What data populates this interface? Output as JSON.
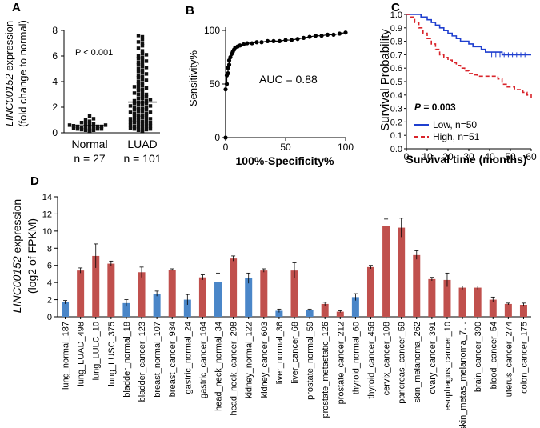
{
  "chart_data": [
    {
      "panel": "A",
      "type": "scatter",
      "title": "",
      "ylabel_italic": "LINC00152",
      "ylabel_rest": " expression",
      "ylabel_line2": "(fold change to normal)",
      "ylim": [
        0,
        8
      ],
      "yticks": [
        0,
        2,
        4,
        6,
        8
      ],
      "pvalue": "P < 0.001",
      "groups": [
        {
          "name": "Normal",
          "n_label": "n = 27",
          "values": [
            0.1,
            0.15,
            0.2,
            0.2,
            0.25,
            0.3,
            0.3,
            0.3,
            0.35,
            0.4,
            0.4,
            0.4,
            0.45,
            0.5,
            0.5,
            0.5,
            0.55,
            0.6,
            0.6,
            0.65,
            0.7,
            0.7,
            0.8,
            0.9,
            1.0,
            1.1,
            1.3
          ],
          "mean": 0.55,
          "sem": 0.1
        },
        {
          "name": "LUAD",
          "n_label": "n = 101",
          "values": [
            0.1,
            0.15,
            0.2,
            0.25,
            0.3,
            0.3,
            0.35,
            0.4,
            0.45,
            0.5,
            0.5,
            0.55,
            0.6,
            0.65,
            0.7,
            0.75,
            0.8,
            0.8,
            0.85,
            0.9,
            0.95,
            1.0,
            1.0,
            1.1,
            1.1,
            1.2,
            1.2,
            1.3,
            1.3,
            1.4,
            1.4,
            1.5,
            1.5,
            1.6,
            1.6,
            1.7,
            1.7,
            1.8,
            1.8,
            1.9,
            1.9,
            2.0,
            2.0,
            2.1,
            2.1,
            2.2,
            2.2,
            2.3,
            2.3,
            2.4,
            2.4,
            2.5,
            2.5,
            2.6,
            2.7,
            2.7,
            2.8,
            2.9,
            3.0,
            3.0,
            3.1,
            3.2,
            3.3,
            3.4,
            3.5,
            3.5,
            3.6,
            3.7,
            3.8,
            3.9,
            4.0,
            4.1,
            4.2,
            4.3,
            4.4,
            4.5,
            4.6,
            4.7,
            4.8,
            4.9,
            5.0,
            5.1,
            5.2,
            5.3,
            5.4,
            5.5,
            5.6,
            5.7,
            5.8,
            5.9,
            6.0,
            6.1,
            6.2,
            6.4,
            6.6,
            6.8,
            7.0,
            7.1,
            7.3,
            7.5,
            7.6
          ],
          "mean": 2.4,
          "sem": 0.2
        }
      ]
    },
    {
      "panel": "B",
      "type": "line",
      "title": "",
      "xlabel": "100%-Specificity%",
      "ylabel": "Sensitivity%",
      "xlim": [
        0,
        100
      ],
      "ylim": [
        0,
        100
      ],
      "xticks": [
        0,
        50,
        100
      ],
      "yticks": [
        0,
        50,
        100
      ],
      "annotation": "AUC = 0.88",
      "x": [
        0,
        0,
        1,
        1,
        2,
        2,
        3,
        3,
        4,
        5,
        6,
        7,
        8,
        10,
        12,
        15,
        18,
        22,
        26,
        30,
        35,
        40,
        45,
        50,
        55,
        60,
        65,
        70,
        75,
        80,
        85,
        90,
        95,
        100
      ],
      "y": [
        0,
        45,
        50,
        58,
        60,
        65,
        68,
        72,
        75,
        78,
        80,
        82,
        84,
        85,
        86,
        87,
        88,
        88,
        89,
        89,
        90,
        90,
        90,
        91,
        91,
        92,
        93,
        94,
        95,
        95,
        96,
        96,
        97,
        98
      ]
    },
    {
      "panel": "C",
      "type": "line",
      "title": "",
      "xlabel": "Survival time (months)",
      "ylabel": "Survival Probability",
      "xlim": [
        0,
        60
      ],
      "ylim": [
        0,
        1
      ],
      "xticks": [
        0,
        10,
        20,
        30,
        40,
        50,
        60
      ],
      "yticks": [
        0.0,
        0.1,
        0.2,
        0.3,
        0.4,
        0.5,
        0.6,
        0.7,
        0.8,
        0.9,
        1.0
      ],
      "ytick_labels": [
        "0.0",
        "0.1",
        "0.2",
        "0.3",
        "0.4",
        "0.5",
        "0.6",
        "0.7",
        "0.8",
        "0.9",
        "1.0"
      ],
      "pvalue_letter": "P",
      "pvalue_rest": " = 0.003",
      "series": [
        {
          "name": "Low, n=50",
          "color": "#1f3fcf",
          "dashed": false,
          "x": [
            0,
            5,
            7,
            10,
            12,
            14,
            16,
            18,
            20,
            22,
            24,
            26,
            28,
            30,
            32,
            34,
            36,
            38,
            40,
            42,
            46,
            48,
            60
          ],
          "y": [
            1.0,
            1.0,
            0.98,
            0.96,
            0.94,
            0.92,
            0.9,
            0.88,
            0.86,
            0.84,
            0.82,
            0.8,
            0.8,
            0.78,
            0.76,
            0.76,
            0.74,
            0.72,
            0.72,
            0.72,
            0.7,
            0.7,
            0.7
          ]
        },
        {
          "name": "High, n=51",
          "color": "#d9242b",
          "dashed": true,
          "x": [
            0,
            2,
            4,
            6,
            8,
            10,
            12,
            14,
            16,
            18,
            20,
            22,
            24,
            26,
            28,
            30,
            32,
            34,
            36,
            40,
            44,
            46,
            48,
            52,
            56,
            58,
            60
          ],
          "y": [
            1.0,
            0.98,
            0.94,
            0.9,
            0.86,
            0.82,
            0.78,
            0.74,
            0.7,
            0.68,
            0.66,
            0.64,
            0.62,
            0.6,
            0.58,
            0.56,
            0.55,
            0.54,
            0.54,
            0.54,
            0.52,
            0.48,
            0.46,
            0.44,
            0.42,
            0.4,
            0.38
          ]
        }
      ]
    },
    {
      "panel": "D",
      "type": "bar",
      "title": "",
      "ylabel_italic": "LINC00152",
      "ylabel_rest": " expression",
      "ylabel_line2": "(log2 of FPKM)",
      "ylim": [
        0,
        14
      ],
      "yticks": [
        0,
        2,
        4,
        6,
        8,
        10,
        12,
        14
      ],
      "colors": {
        "normal": "#4a86c8",
        "cancer": "#c0504d"
      },
      "categories": [
        "lung_normal_187",
        "lung_LUAD_498",
        "lung_LULC_10",
        "lung_LUSC_375",
        "bladder_normal_18",
        "bladder_cancer_123",
        "breast_normal_107",
        "breast_cancer_934",
        "gastric_normal_24",
        "gastric_cancer_164",
        "head_neck_normal_34",
        "head_neck_cancer_298",
        "kidney_normal_122",
        "kidney_cancer_603",
        "liver_normal_36",
        "liver_cancer_68",
        "prostate_normal_59",
        "prostate_metastatic_126",
        "prostate_cancer_212",
        "thyroid_normal_60",
        "thyroid_cancer_456",
        "cervix_cancer_108",
        "pancreas_cancer_59",
        "skin_melanoma_262",
        "ovary_cancer_391",
        "esophagus_cancer_10",
        "skin_metas_melanoma_7…",
        "brain_cancer_390",
        "blood_cancer_54",
        "uterus_cancer_274",
        "colon_cancer_175"
      ],
      "values": [
        1.7,
        5.4,
        7.1,
        6.2,
        1.6,
        5.2,
        2.7,
        5.5,
        2.0,
        4.6,
        4.1,
        6.8,
        4.5,
        5.4,
        0.7,
        5.4,
        0.8,
        1.5,
        0.6,
        2.3,
        5.8,
        10.6,
        10.4,
        7.2,
        4.4,
        4.3,
        3.4,
        3.4,
        2.0,
        1.5,
        1.4
      ],
      "errors": [
        0.2,
        0.3,
        1.4,
        0.3,
        0.4,
        0.6,
        0.3,
        0.1,
        0.6,
        0.3,
        1.0,
        0.3,
        0.6,
        0.2,
        0.2,
        0.9,
        0.1,
        0.2,
        0.1,
        0.4,
        0.2,
        0.8,
        1.1,
        0.5,
        0.2,
        0.8,
        0.2,
        0.2,
        0.3,
        0.1,
        0.2
      ],
      "kinds": [
        "normal",
        "cancer",
        "cancer",
        "cancer",
        "normal",
        "cancer",
        "normal",
        "cancer",
        "normal",
        "cancer",
        "normal",
        "cancer",
        "normal",
        "cancer",
        "normal",
        "cancer",
        "normal",
        "cancer",
        "cancer",
        "normal",
        "cancer",
        "cancer",
        "cancer",
        "cancer",
        "cancer",
        "cancer",
        "cancer",
        "cancer",
        "cancer",
        "cancer",
        "cancer"
      ]
    }
  ]
}
